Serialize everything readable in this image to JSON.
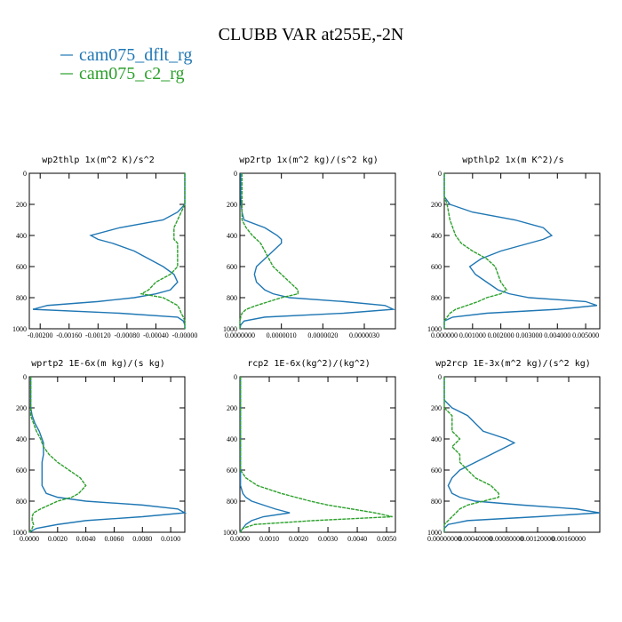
{
  "title": "CLUBB VAR at255E,-2N",
  "chart_data": [
    {
      "type": "line",
      "title": "wp2thlp   1x(m^2 K)/s^2",
      "y": [
        0,
        50,
        100,
        150,
        200,
        250,
        300,
        350,
        400,
        425,
        450,
        500,
        550,
        600,
        650,
        700,
        750,
        775,
        800,
        825,
        850,
        875,
        900,
        925,
        950,
        975,
        1000
      ],
      "ylim": [
        1000,
        0
      ],
      "yticks": [
        0,
        200,
        400,
        600,
        800,
        1000
      ],
      "xlim": [
        -0.00215,
        0
      ],
      "xticks": [
        {
          "value": -0.002,
          "label": "-0.00200"
        },
        {
          "value": -0.0016,
          "label": "-0.00160"
        },
        {
          "value": -0.0012,
          "label": "-0.00120"
        },
        {
          "value": -0.0008,
          "label": "-0.00080"
        },
        {
          "value": -0.0004,
          "label": "-0.00040"
        },
        {
          "value": 0,
          "label": "-0.00000"
        }
      ],
      "series": [
        {
          "name": "cam075_dflt_rg",
          "color": "#1f77b4",
          "values": [
            0,
            0,
            0,
            0,
            0,
            -0.0001,
            -0.0003,
            -0.0009,
            -0.0013,
            -0.0012,
            -0.001,
            -0.0007,
            -0.0005,
            -0.0003,
            -0.00015,
            -0.0001,
            -0.0002,
            -0.0004,
            -0.0007,
            -0.0012,
            -0.0019,
            -0.0021,
            -0.0009,
            -0.0001,
            -2e-05,
            0,
            0
          ]
        },
        {
          "name": "cam075_c2_rg",
          "color": "#2ca02c",
          "values": [
            0,
            0,
            0,
            0,
            0,
            -5e-05,
            -0.0001,
            -0.00015,
            -0.00015,
            -0.00015,
            -0.0001,
            -0.0001,
            -0.0001,
            -0.0001,
            -0.0002,
            -0.0004,
            -0.0005,
            -0.0006,
            -0.0003,
            -0.0002,
            -0.0001,
            -7e-05,
            -5e-05,
            -2e-05,
            0,
            0,
            0
          ]
        }
      ]
    },
    {
      "type": "line",
      "title": "wp2rtp   1x(m^2 kg)/(s^2 kg)",
      "y": [
        0,
        50,
        100,
        150,
        200,
        250,
        300,
        350,
        400,
        425,
        450,
        500,
        550,
        600,
        650,
        700,
        750,
        775,
        800,
        825,
        850,
        875,
        900,
        925,
        950,
        975,
        1000
      ],
      "ylim": [
        1000,
        0
      ],
      "yticks": [
        0,
        200,
        400,
        600,
        800,
        1000
      ],
      "xlim": [
        0,
        3.75e-06
      ],
      "xticks": [
        {
          "value": 0,
          "label": "0.0000000"
        },
        {
          "value": 1e-06,
          "label": "0.0000010"
        },
        {
          "value": 2e-06,
          "label": "0.0000020"
        },
        {
          "value": 3e-06,
          "label": "0.0000030"
        }
      ],
      "series": [
        {
          "name": "cam075_dflt_rg",
          "color": "#1f77b4",
          "values": [
            2e-08,
            2e-08,
            2e-08,
            2e-08,
            3e-08,
            5e-08,
            1e-07,
            6e-07,
            9e-07,
            1e-06,
            1e-06,
            8e-07,
            6e-07,
            4e-07,
            3.5e-07,
            4e-07,
            6e-07,
            8e-07,
            1.2e-06,
            2.5e-06,
            3.5e-06,
            3.7e-06,
            2.5e-06,
            6e-07,
            1e-07,
            2e-08,
            0
          ]
        },
        {
          "name": "cam075_c2_rg",
          "color": "#2ca02c",
          "values": [
            5e-08,
            5e-08,
            5e-08,
            5e-08,
            5e-08,
            5e-08,
            5e-08,
            1.5e-07,
            3e-07,
            4e-07,
            5e-07,
            6e-07,
            7e-07,
            8e-07,
            1e-06,
            1.2e-06,
            1.4e-06,
            1.4e-06,
            1e-06,
            7e-07,
            4e-07,
            1.5e-07,
            5e-08,
            2e-08,
            0,
            0,
            0
          ]
        }
      ]
    },
    {
      "type": "line",
      "title": "wpthlp2   1x(m K^2)/s",
      "y": [
        0,
        50,
        100,
        150,
        200,
        250,
        300,
        350,
        400,
        425,
        450,
        500,
        550,
        600,
        650,
        700,
        750,
        775,
        800,
        825,
        850,
        875,
        900,
        925,
        950,
        975,
        1000
      ],
      "ylim": [
        1000,
        0
      ],
      "yticks": [
        0,
        200,
        400,
        600,
        800,
        1000
      ],
      "xlim": [
        0,
        0.0055
      ],
      "xticks": [
        {
          "value": 0,
          "label": "0.000000"
        },
        {
          "value": 0.001,
          "label": "0.001000"
        },
        {
          "value": 0.002,
          "label": "0.002000"
        },
        {
          "value": 0.003,
          "label": "0.003000"
        },
        {
          "value": 0.004,
          "label": "0.004000"
        },
        {
          "value": 0.005,
          "label": "0.005000"
        }
      ],
      "series": [
        {
          "name": "cam075_dflt_rg",
          "color": "#1f77b4",
          "values": [
            0,
            0,
            0,
            0,
            0.0002,
            0.001,
            0.0025,
            0.0035,
            0.0038,
            0.0035,
            0.003,
            0.002,
            0.0013,
            0.0009,
            0.0011,
            0.0015,
            0.0019,
            0.0023,
            0.003,
            0.005,
            0.0054,
            0.004,
            0.0015,
            0.0003,
            0,
            0,
            0
          ]
        },
        {
          "name": "cam075_c2_rg",
          "color": "#2ca02c",
          "values": [
            0,
            0,
            0,
            0,
            0.0001,
            0.00015,
            0.0002,
            0.0003,
            0.0004,
            0.0005,
            0.0006,
            0.001,
            0.0015,
            0.0018,
            0.0019,
            0.002,
            0.0022,
            0.002,
            0.0015,
            0.0012,
            0.0008,
            0.0004,
            0.0002,
            0.0001,
            0,
            0,
            0
          ]
        }
      ]
    },
    {
      "type": "line",
      "title": "wprtp2   1E-6x(m kg)/(s kg)",
      "y": [
        0,
        50,
        100,
        150,
        200,
        250,
        300,
        350,
        400,
        425,
        450,
        500,
        550,
        600,
        650,
        700,
        750,
        775,
        800,
        825,
        850,
        875,
        900,
        925,
        950,
        975,
        1000
      ],
      "ylim": [
        1000,
        0
      ],
      "yticks": [
        0,
        200,
        400,
        600,
        800,
        1000
      ],
      "xlim": [
        0,
        0.011
      ],
      "xticks": [
        {
          "value": 0,
          "label": "0.0000"
        },
        {
          "value": 0.002,
          "label": "0.0020"
        },
        {
          "value": 0.004,
          "label": "0.0040"
        },
        {
          "value": 0.006,
          "label": "0.0060"
        },
        {
          "value": 0.008,
          "label": "0.0080"
        },
        {
          "value": 0.01,
          "label": "0.0100"
        }
      ],
      "series": [
        {
          "name": "cam075_dflt_rg",
          "color": "#1f77b4",
          "values": [
            0.0001,
            0.0001,
            0.0001,
            0.0001,
            0.0001,
            0.0002,
            0.0004,
            0.0007,
            0.0009,
            0.001,
            0.001,
            0.001,
            0.0009,
            0.0009,
            0.0009,
            0.0009,
            0.0012,
            0.002,
            0.004,
            0.008,
            0.0105,
            0.011,
            0.008,
            0.004,
            0.002,
            0.0005,
            0
          ]
        },
        {
          "name": "cam075_c2_rg",
          "color": "#2ca02c",
          "values": [
            0.0001,
            0.0001,
            0.0001,
            0.0001,
            0.0001,
            0.0001,
            0.0003,
            0.0005,
            0.0008,
            0.0009,
            0.001,
            0.0014,
            0.002,
            0.0028,
            0.0036,
            0.004,
            0.0035,
            0.003,
            0.002,
            0.0014,
            0.0008,
            0.0003,
            0.0002,
            0.0002,
            0.0003,
            0.0002,
            0
          ]
        }
      ]
    },
    {
      "type": "line",
      "title": "rcp2   1E-6x(kg^2)/(kg^2)",
      "y": [
        0,
        50,
        100,
        150,
        200,
        250,
        300,
        350,
        400,
        425,
        450,
        500,
        550,
        600,
        650,
        700,
        750,
        775,
        800,
        825,
        850,
        875,
        900,
        925,
        950,
        975,
        1000
      ],
      "ylim": [
        1000,
        0
      ],
      "yticks": [
        0,
        200,
        400,
        600,
        800,
        1000
      ],
      "xlim": [
        0,
        0.0053
      ],
      "xticks": [
        {
          "value": 0,
          "label": "0.0000"
        },
        {
          "value": 0.001,
          "label": "0.0010"
        },
        {
          "value": 0.002,
          "label": "0.0020"
        },
        {
          "value": 0.003,
          "label": "0.0030"
        },
        {
          "value": 0.004,
          "label": "0.0040"
        },
        {
          "value": 0.005,
          "label": "0.0050"
        }
      ],
      "series": [
        {
          "name": "cam075_dflt_rg",
          "color": "#1f77b4",
          "values": [
            2e-05,
            2e-05,
            2e-05,
            2e-05,
            2e-05,
            2e-05,
            2e-05,
            2e-05,
            2e-05,
            2e-05,
            2e-05,
            2e-05,
            2e-05,
            2e-05,
            2e-05,
            2e-05,
            0.0001,
            0.0002,
            0.0004,
            0.0008,
            0.0012,
            0.0017,
            0.0008,
            0.0004,
            0.0002,
            0.0001,
            0
          ]
        },
        {
          "name": "cam075_c2_rg",
          "color": "#2ca02c",
          "values": [
            2e-05,
            2e-05,
            2e-05,
            2e-05,
            2e-05,
            2e-05,
            2e-05,
            2e-05,
            2e-05,
            2e-05,
            2e-05,
            2e-05,
            2e-05,
            2e-05,
            0.0002,
            0.0006,
            0.0014,
            0.0019,
            0.0024,
            0.003,
            0.0038,
            0.0046,
            0.0052,
            0.0025,
            0.0005,
            0.0001,
            0
          ]
        }
      ]
    },
    {
      "type": "line",
      "title": "wp2rcp   1E-3x(m^2 kg)/(s^2 kg)",
      "y": [
        0,
        50,
        100,
        150,
        200,
        250,
        300,
        350,
        400,
        425,
        450,
        500,
        550,
        600,
        650,
        700,
        750,
        775,
        800,
        825,
        850,
        875,
        900,
        925,
        950,
        975,
        1000
      ],
      "ylim": [
        1000,
        0
      ],
      "yticks": [
        0,
        200,
        400,
        600,
        800,
        1000
      ],
      "xlim": [
        0,
        0.002
      ],
      "xticks": [
        {
          "value": 0,
          "label": "0.00000000"
        },
        {
          "value": 0.0004,
          "label": "0.00040000"
        },
        {
          "value": 0.0008,
          "label": "0.00080000"
        },
        {
          "value": 0.0012,
          "label": "0.00120000"
        },
        {
          "value": 0.0016,
          "label": "0.00160000"
        }
      ],
      "series": [
        {
          "name": "cam075_dflt_rg",
          "color": "#1f77b4",
          "values": [
            0,
            0,
            0,
            0,
            0.0001,
            0.0003,
            0.0004,
            0.0005,
            0.0008,
            0.0009,
            0.0008,
            0.0006,
            0.0004,
            0.0002,
            0.0001,
            5e-05,
            0.0001,
            0.0002,
            0.0004,
            0.001,
            0.0017,
            0.002,
            0.0012,
            0.0003,
            5e-05,
            0,
            0
          ]
        },
        {
          "name": "cam075_c2_rg",
          "color": "#2ca02c",
          "values": [
            0,
            0,
            0,
            0,
            0,
            0.0001,
            0.0001,
            0.0001,
            0.0002,
            0.00015,
            0.0001,
            0.0002,
            0.0002,
            0.0003,
            0.0004,
            0.0006,
            0.0007,
            0.0007,
            0.0005,
            0.0003,
            0.0002,
            0.00015,
            0.0001,
            5e-05,
            0,
            0,
            0
          ]
        }
      ]
    }
  ]
}
